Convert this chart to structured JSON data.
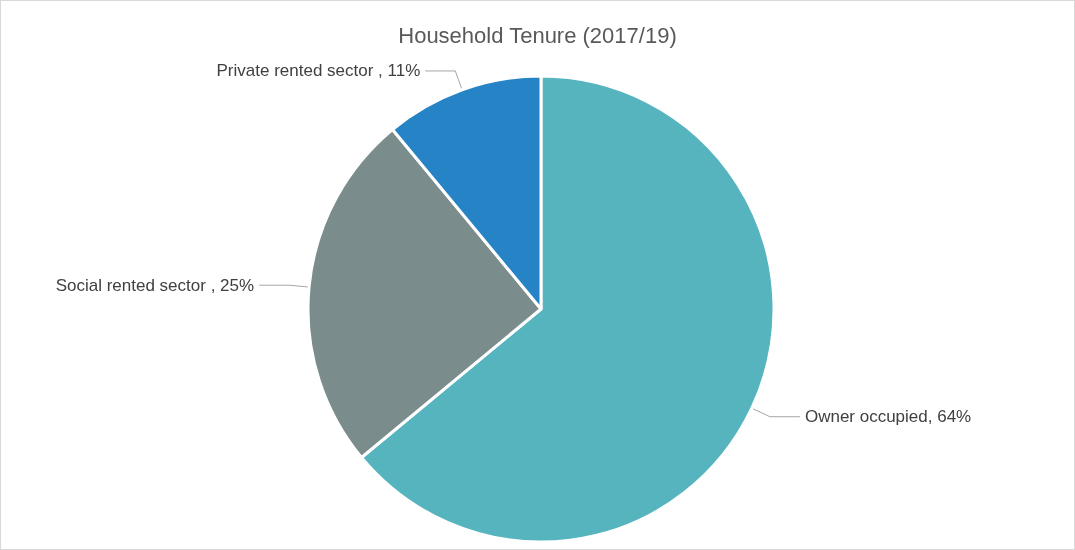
{
  "chart_data": {
    "type": "pie",
    "title": "Household Tenure (2017/19)",
    "categories": [
      "Owner occupied",
      "Social rented sector ",
      "Private rented sector "
    ],
    "values": [
      64,
      25,
      11
    ],
    "value_labels": [
      "64%",
      "25%",
      "11%"
    ],
    "colors": [
      "#56b4bf",
      "#7a8c8c",
      "#2683c6"
    ],
    "legend": false
  }
}
